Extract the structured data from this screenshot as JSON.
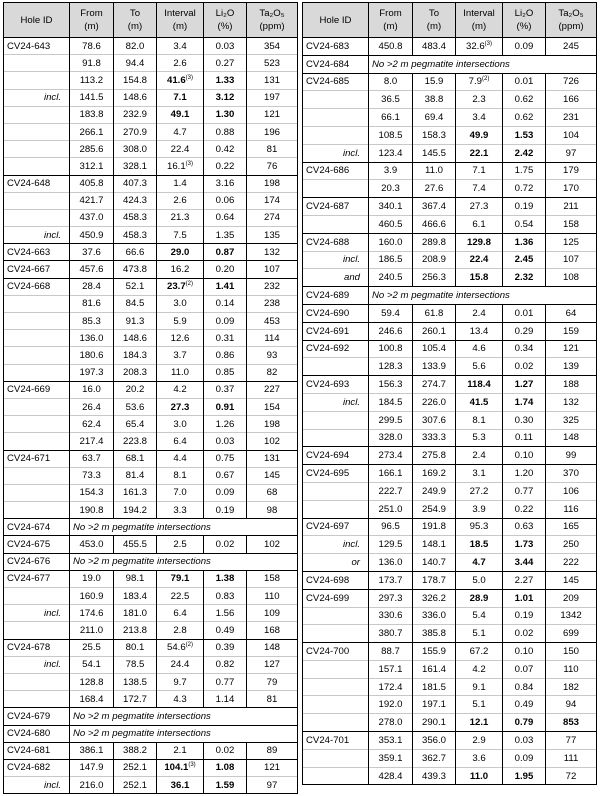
{
  "tables": [
    {
      "headers": [
        {
          "label": "Hole ID"
        },
        {
          "label": "From",
          "unit": "(m)"
        },
        {
          "label": "To",
          "unit": "(m)"
        },
        {
          "label": "Interval",
          "unit": "(m)"
        },
        {
          "label": "Li₂O",
          "unit": "(%)"
        },
        {
          "label": "Ta₂O₅",
          "unit": "(ppm)"
        }
      ],
      "rows": [
        {
          "h": "CV24-643",
          "f": "78.6",
          "t": "82.0",
          "i": "3.4",
          "l": "0.03",
          "ta": "354"
        },
        {
          "f": "91.8",
          "t": "94.4",
          "i": "2.6",
          "l": "0.27",
          "ta": "523"
        },
        {
          "f": "113.2",
          "t": "154.8",
          "i": "41.6",
          "s": "(3)",
          "l": "1.33",
          "ta": "131",
          "b": [
            "i",
            "l"
          ]
        },
        {
          "q": "incl.",
          "f": "141.5",
          "t": "148.6",
          "i": "7.1",
          "l": "3.12",
          "ta": "197",
          "b": [
            "i",
            "l"
          ]
        },
        {
          "f": "183.8",
          "t": "232.9",
          "i": "49.1",
          "l": "1.30",
          "ta": "121",
          "b": [
            "i",
            "l"
          ]
        },
        {
          "f": "266.1",
          "t": "270.9",
          "i": "4.7",
          "l": "0.88",
          "ta": "196"
        },
        {
          "f": "285.6",
          "t": "308.0",
          "i": "22.4",
          "l": "0.42",
          "ta": "81"
        },
        {
          "f": "312.1",
          "t": "328.1",
          "i": "16.1",
          "s": "(3)",
          "l": "0.22",
          "ta": "76"
        },
        {
          "h": "CV24-648",
          "f": "405.8",
          "t": "407.3",
          "i": "1.4",
          "l": "3.16",
          "ta": "198"
        },
        {
          "f": "421.7",
          "t": "424.3",
          "i": "2.6",
          "l": "0.06",
          "ta": "174"
        },
        {
          "f": "437.0",
          "t": "458.3",
          "i": "21.3",
          "l": "0.64",
          "ta": "274"
        },
        {
          "q": "incl.",
          "f": "450.9",
          "t": "458.3",
          "i": "7.5",
          "l": "1.35",
          "ta": "135"
        },
        {
          "h": "CV24-663",
          "f": "37.6",
          "t": "66.6",
          "i": "29.0",
          "l": "0.87",
          "ta": "132",
          "b": [
            "i",
            "l"
          ]
        },
        {
          "h": "CV24-667",
          "f": "457.6",
          "t": "473.8",
          "i": "16.2",
          "l": "0.20",
          "ta": "107"
        },
        {
          "h": "CV24-668",
          "f": "28.4",
          "t": "52.1",
          "i": "23.7",
          "s": "(2)",
          "l": "1.41",
          "ta": "232",
          "b": [
            "i",
            "l"
          ]
        },
        {
          "f": "81.6",
          "t": "84.5",
          "i": "3.0",
          "l": "0.14",
          "ta": "238"
        },
        {
          "f": "85.3",
          "t": "91.3",
          "i": "5.9",
          "l": "0.09",
          "ta": "453"
        },
        {
          "f": "136.0",
          "t": "148.6",
          "i": "12.6",
          "l": "0.31",
          "ta": "114"
        },
        {
          "f": "180.6",
          "t": "184.3",
          "i": "3.7",
          "l": "0.86",
          "ta": "93"
        },
        {
          "f": "197.3",
          "t": "208.3",
          "i": "11.0",
          "l": "0.85",
          "ta": "82"
        },
        {
          "h": "CV24-669",
          "f": "16.0",
          "t": "20.2",
          "i": "4.2",
          "l": "0.37",
          "ta": "227"
        },
        {
          "f": "26.4",
          "t": "53.6",
          "i": "27.3",
          "l": "0.91",
          "ta": "154",
          "b": [
            "i",
            "l"
          ]
        },
        {
          "f": "62.4",
          "t": "65.4",
          "i": "3.0",
          "l": "1.26",
          "ta": "198"
        },
        {
          "f": "217.4",
          "t": "223.8",
          "i": "6.4",
          "l": "0.03",
          "ta": "102"
        },
        {
          "h": "CV24-671",
          "f": "63.7",
          "t": "68.1",
          "i": "4.4",
          "l": "0.75",
          "ta": "131"
        },
        {
          "f": "73.3",
          "t": "81.4",
          "i": "8.1",
          "l": "0.67",
          "ta": "145"
        },
        {
          "f": "154.3",
          "t": "161.3",
          "i": "7.0",
          "l": "0.09",
          "ta": "68"
        },
        {
          "f": "190.8",
          "t": "194.2",
          "i": "3.3",
          "l": "0.19",
          "ta": "98"
        },
        {
          "h": "CV24-674",
          "r": "No >2 m pegmatite intersections"
        },
        {
          "h": "CV24-675",
          "f": "453.0",
          "t": "455.5",
          "i": "2.5",
          "l": "0.02",
          "ta": "102"
        },
        {
          "h": "CV24-676",
          "r": "No >2 m pegmatite intersections"
        },
        {
          "h": "CV24-677",
          "f": "19.0",
          "t": "98.1",
          "i": "79.1",
          "l": "1.38",
          "ta": "158",
          "b": [
            "i",
            "l"
          ]
        },
        {
          "f": "160.9",
          "t": "183.4",
          "i": "22.5",
          "l": "0.83",
          "ta": "110"
        },
        {
          "q": "incl.",
          "f": "174.6",
          "t": "181.0",
          "i": "6.4",
          "l": "1.56",
          "ta": "109"
        },
        {
          "f": "211.0",
          "t": "213.8",
          "i": "2.8",
          "l": "0.49",
          "ta": "168"
        },
        {
          "h": "CV24-678",
          "f": "25.5",
          "t": "80.1",
          "i": "54.6",
          "s": "(2)",
          "l": "0.39",
          "ta": "148"
        },
        {
          "q": "incl.",
          "f": "54.1",
          "t": "78.5",
          "i": "24.4",
          "l": "0.82",
          "ta": "127"
        },
        {
          "f": "128.8",
          "t": "138.5",
          "i": "9.7",
          "l": "0.77",
          "ta": "79"
        },
        {
          "f": "168.4",
          "t": "172.7",
          "i": "4.3",
          "l": "1.14",
          "ta": "81"
        },
        {
          "h": "CV24-679",
          "r": "No >2 m pegmatite intersections"
        },
        {
          "h": "CV24-680",
          "r": "No >2 m pegmatite intersections"
        },
        {
          "h": "CV24-681",
          "f": "386.1",
          "t": "388.2",
          "i": "2.1",
          "l": "0.02",
          "ta": "89"
        },
        {
          "h": "CV24-682",
          "f": "147.9",
          "t": "252.1",
          "i": "104.1",
          "s": "(3)",
          "l": "1.08",
          "ta": "121",
          "b": [
            "i",
            "l"
          ]
        },
        {
          "q": "incl.",
          "f": "216.0",
          "t": "252.1",
          "i": "36.1",
          "l": "1.59",
          "ta": "97",
          "b": [
            "i",
            "l"
          ]
        }
      ]
    },
    {
      "headers": [
        {
          "label": "Hole ID"
        },
        {
          "label": "From",
          "unit": "(m)"
        },
        {
          "label": "To",
          "unit": "(m)"
        },
        {
          "label": "Interval",
          "unit": "(m)"
        },
        {
          "label": "Li₂O",
          "unit": "(%)"
        },
        {
          "label": "Ta₂O₅",
          "unit": "(ppm)"
        }
      ],
      "rows": [
        {
          "h": "CV24-683",
          "f": "450.8",
          "t": "483.4",
          "i": "32.6",
          "s": "(3)",
          "l": "0.09",
          "ta": "245"
        },
        {
          "h": "CV24-684",
          "r": "No >2 m pegmatite intersections"
        },
        {
          "h": "CV24-685",
          "f": "8.0",
          "t": "15.9",
          "i": "7.9",
          "s": "(2)",
          "l": "0.01",
          "ta": "726"
        },
        {
          "f": "36.5",
          "t": "38.8",
          "i": "2.3",
          "l": "0.62",
          "ta": "166"
        },
        {
          "f": "66.1",
          "t": "69.4",
          "i": "3.4",
          "l": "0.62",
          "ta": "231"
        },
        {
          "f": "108.5",
          "t": "158.3",
          "i": "49.9",
          "l": "1.53",
          "ta": "104",
          "b": [
            "i",
            "l"
          ]
        },
        {
          "q": "incl.",
          "f": "123.4",
          "t": "145.5",
          "i": "22.1",
          "l": "2.42",
          "ta": "97",
          "b": [
            "i",
            "l"
          ]
        },
        {
          "h": "CV24-686",
          "f": "3.9",
          "t": "11.0",
          "i": "7.1",
          "l": "1.75",
          "ta": "179"
        },
        {
          "f": "20.3",
          "t": "27.6",
          "i": "7.4",
          "l": "0.72",
          "ta": "170"
        },
        {
          "h": "CV24-687",
          "f": "340.1",
          "t": "367.4",
          "i": "27.3",
          "l": "0.19",
          "ta": "211"
        },
        {
          "f": "460.5",
          "t": "466.6",
          "i": "6.1",
          "l": "0.54",
          "ta": "158"
        },
        {
          "h": "CV24-688",
          "f": "160.0",
          "t": "289.8",
          "i": "129.8",
          "l": "1.36",
          "ta": "125",
          "b": [
            "i",
            "l"
          ]
        },
        {
          "q": "incl.",
          "f": "186.5",
          "t": "208.9",
          "i": "22.4",
          "l": "2.45",
          "ta": "107",
          "b": [
            "i",
            "l"
          ]
        },
        {
          "q": "and",
          "f": "240.5",
          "t": "256.3",
          "i": "15.8",
          "l": "2.32",
          "ta": "108",
          "b": [
            "i",
            "l"
          ]
        },
        {
          "h": "CV24-689",
          "r": "No >2 m pegmatite intersections"
        },
        {
          "h": "CV24-690",
          "f": "59.4",
          "t": "61.8",
          "i": "2.4",
          "l": "0.01",
          "ta": "64"
        },
        {
          "h": "CV24-691",
          "f": "246.6",
          "t": "260.1",
          "i": "13.4",
          "l": "0.29",
          "ta": "159"
        },
        {
          "h": "CV24-692",
          "f": "100.8",
          "t": "105.4",
          "i": "4.6",
          "l": "0.34",
          "ta": "121"
        },
        {
          "f": "128.3",
          "t": "133.9",
          "i": "5.6",
          "l": "0.02",
          "ta": "139"
        },
        {
          "h": "CV24-693",
          "f": "156.3",
          "t": "274.7",
          "i": "118.4",
          "l": "1.27",
          "ta": "188",
          "b": [
            "i",
            "l"
          ]
        },
        {
          "q": "incl.",
          "f": "184.5",
          "t": "226.0",
          "i": "41.5",
          "l": "1.74",
          "ta": "132",
          "b": [
            "i",
            "l"
          ]
        },
        {
          "f": "299.5",
          "t": "307.6",
          "i": "8.1",
          "l": "0.30",
          "ta": "325"
        },
        {
          "f": "328.0",
          "t": "333.3",
          "i": "5.3",
          "l": "0.11",
          "ta": "148"
        },
        {
          "h": "CV24-694",
          "f": "273.4",
          "t": "275.8",
          "i": "2.4",
          "l": "0.10",
          "ta": "99"
        },
        {
          "h": "CV24-695",
          "f": "166.1",
          "t": "169.2",
          "i": "3.1",
          "l": "1.20",
          "ta": "370"
        },
        {
          "f": "222.7",
          "t": "249.9",
          "i": "27.2",
          "l": "0.77",
          "ta": "106"
        },
        {
          "f": "251.0",
          "t": "254.9",
          "i": "3.9",
          "l": "0.22",
          "ta": "116"
        },
        {
          "h": "CV24-697",
          "f": "96.5",
          "t": "191.8",
          "i": "95.3",
          "l": "0.63",
          "ta": "165"
        },
        {
          "q": "incl.",
          "f": "129.5",
          "t": "148.1",
          "i": "18.5",
          "l": "1.73",
          "ta": "250",
          "b": [
            "i",
            "l"
          ]
        },
        {
          "q": "or",
          "f": "136.0",
          "t": "140.7",
          "i": "4.7",
          "l": "3.44",
          "ta": "222",
          "b": [
            "i",
            "l"
          ]
        },
        {
          "h": "CV24-698",
          "f": "173.7",
          "t": "178.7",
          "i": "5.0",
          "l": "2.27",
          "ta": "145"
        },
        {
          "h": "CV24-699",
          "f": "297.3",
          "t": "326.2",
          "i": "28.9",
          "l": "1.01",
          "ta": "209",
          "b": [
            "i",
            "l"
          ]
        },
        {
          "f": "330.6",
          "t": "336.0",
          "i": "5.4",
          "l": "0.19",
          "ta": "1342"
        },
        {
          "f": "380.7",
          "t": "385.8",
          "i": "5.1",
          "l": "0.02",
          "ta": "699"
        },
        {
          "h": "CV24-700",
          "f": "88.7",
          "t": "155.9",
          "i": "67.2",
          "l": "0.10",
          "ta": "150"
        },
        {
          "f": "157.1",
          "t": "161.4",
          "i": "4.2",
          "l": "0.07",
          "ta": "110"
        },
        {
          "f": "172.4",
          "t": "181.5",
          "i": "9.1",
          "l": "0.84",
          "ta": "182"
        },
        {
          "f": "192.0",
          "t": "197.1",
          "i": "5.1",
          "l": "0.49",
          "ta": "94"
        },
        {
          "f": "278.0",
          "t": "290.1",
          "i": "12.1",
          "l": "0.79",
          "ta": "853",
          "b": [
            "i",
            "l",
            "ta"
          ]
        },
        {
          "h": "CV24-701",
          "f": "353.1",
          "t": "356.0",
          "i": "2.9",
          "l": "0.03",
          "ta": "77"
        },
        {
          "f": "359.1",
          "t": "362.7",
          "i": "3.6",
          "l": "0.09",
          "ta": "111"
        },
        {
          "f": "428.4",
          "t": "439.3",
          "i": "11.0",
          "l": "1.95",
          "ta": "72",
          "b": [
            "i",
            "l"
          ]
        }
      ]
    }
  ]
}
